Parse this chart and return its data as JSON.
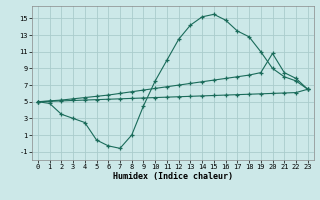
{
  "xlabel": "Humidex (Indice chaleur)",
  "background_color": "#cce8e8",
  "grid_color": "#aacccc",
  "line_color": "#1a6b5a",
  "xlim": [
    -0.5,
    23.5
  ],
  "ylim": [
    -2.0,
    16.5
  ],
  "yticks": [
    -1,
    1,
    3,
    5,
    7,
    9,
    11,
    13,
    15
  ],
  "xticks": [
    0,
    1,
    2,
    3,
    4,
    5,
    6,
    7,
    8,
    9,
    10,
    11,
    12,
    13,
    14,
    15,
    16,
    17,
    18,
    19,
    20,
    21,
    22,
    23
  ],
  "line1_x": [
    0,
    1,
    2,
    3,
    4,
    5,
    6,
    7,
    8,
    9,
    10,
    11,
    12,
    13,
    14,
    15,
    16,
    17,
    18,
    19,
    20,
    21,
    22,
    23
  ],
  "line1_y": [
    5.0,
    4.8,
    3.5,
    3.0,
    2.5,
    0.4,
    -0.3,
    -0.6,
    1.0,
    4.5,
    7.5,
    10.0,
    12.5,
    14.2,
    15.2,
    15.5,
    14.8,
    13.5,
    12.8,
    11.0,
    9.0,
    8.0,
    7.5,
    6.5
  ],
  "line2_x": [
    0,
    1,
    2,
    3,
    4,
    5,
    6,
    7,
    8,
    9,
    10,
    11,
    12,
    13,
    14,
    15,
    16,
    17,
    18,
    19,
    20,
    21,
    22,
    23
  ],
  "line2_y": [
    5.0,
    5.1,
    5.2,
    5.35,
    5.5,
    5.65,
    5.8,
    6.0,
    6.2,
    6.4,
    6.6,
    6.8,
    7.0,
    7.2,
    7.4,
    7.6,
    7.8,
    8.0,
    8.2,
    8.5,
    10.8,
    8.5,
    7.8,
    6.5
  ],
  "line3_x": [
    0,
    1,
    2,
    3,
    4,
    5,
    6,
    7,
    8,
    9,
    10,
    11,
    12,
    13,
    14,
    15,
    16,
    17,
    18,
    19,
    20,
    21,
    22,
    23
  ],
  "line3_y": [
    5.0,
    5.05,
    5.1,
    5.15,
    5.2,
    5.25,
    5.3,
    5.35,
    5.4,
    5.45,
    5.5,
    5.55,
    5.6,
    5.65,
    5.7,
    5.75,
    5.8,
    5.85,
    5.9,
    5.95,
    6.0,
    6.05,
    6.1,
    6.5
  ]
}
